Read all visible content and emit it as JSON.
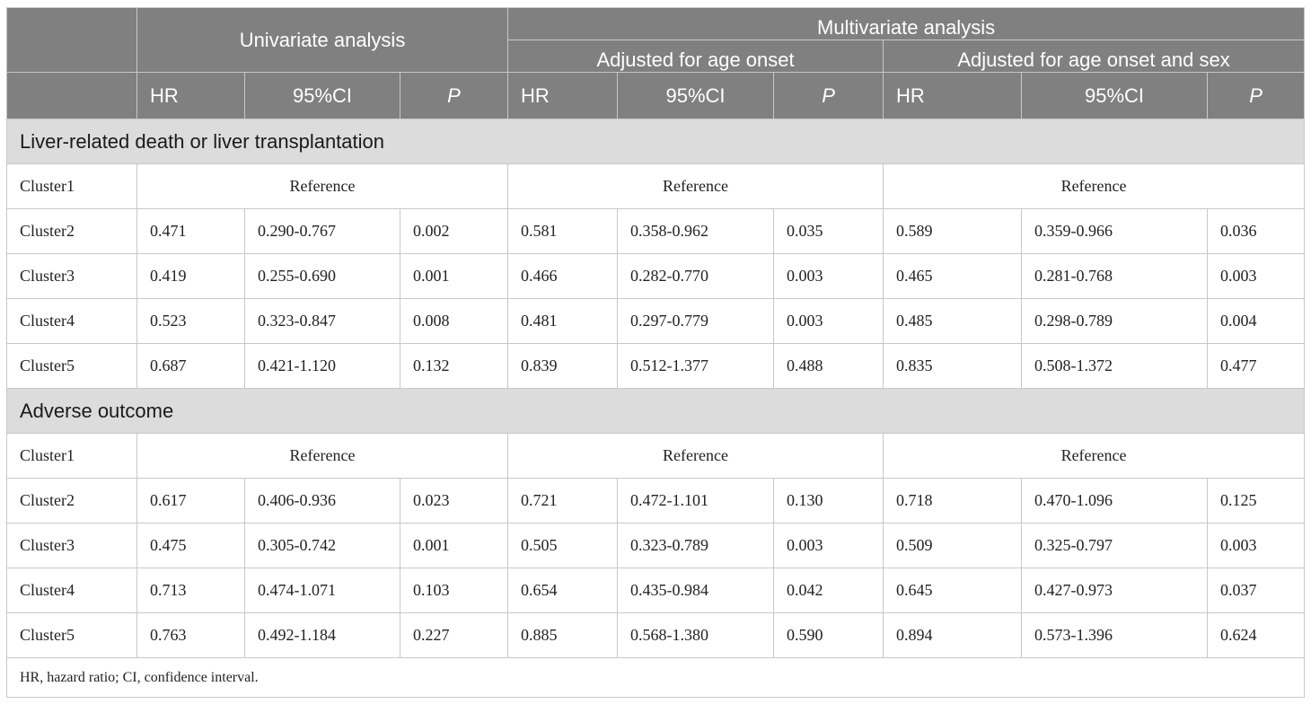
{
  "header": {
    "univariate": "Univariate analysis",
    "multivariate": "Multivariate analysis",
    "adj_age": "Adjusted for age onset",
    "adj_age_sex": "Adjusted for age onset and sex",
    "hr": "HR",
    "ci": "95%CI",
    "p": "P"
  },
  "sections": [
    {
      "title": "Liver-related death or liver transplantation",
      "reference_label": "Reference",
      "rows": [
        {
          "label": "Cluster1",
          "reference": true
        },
        {
          "label": "Cluster2",
          "values": [
            "0.471",
            "0.290-0.767",
            "0.002",
            "0.581",
            "0.358-0.962",
            "0.035",
            "0.589",
            "0.359-0.966",
            "0.036"
          ]
        },
        {
          "label": "Cluster3",
          "values": [
            "0.419",
            "0.255-0.690",
            "0.001",
            "0.466",
            "0.282-0.770",
            "0.003",
            "0.465",
            "0.281-0.768",
            "0.003"
          ]
        },
        {
          "label": "Cluster4",
          "values": [
            "0.523",
            "0.323-0.847",
            "0.008",
            "0.481",
            "0.297-0.779",
            "0.003",
            "0.485",
            "0.298-0.789",
            "0.004"
          ]
        },
        {
          "label": "Cluster5",
          "values": [
            "0.687",
            "0.421-1.120",
            "0.132",
            "0.839",
            "0.512-1.377",
            "0.488",
            "0.835",
            "0.508-1.372",
            "0.477"
          ]
        }
      ]
    },
    {
      "title": "Adverse outcome",
      "reference_label": "Reference",
      "rows": [
        {
          "label": "Cluster1",
          "reference": true
        },
        {
          "label": "Cluster2",
          "values": [
            "0.617",
            "0.406-0.936",
            "0.023",
            "0.721",
            "0.472-1.101",
            "0.130",
            "0.718",
            "0.470-1.096",
            "0.125"
          ]
        },
        {
          "label": "Cluster3",
          "values": [
            "0.475",
            "0.305-0.742",
            "0.001",
            "0.505",
            "0.323-0.789",
            "0.003",
            "0.509",
            "0.325-0.797",
            "0.003"
          ]
        },
        {
          "label": "Cluster4",
          "values": [
            "0.713",
            "0.474-1.071",
            "0.103",
            "0.654",
            "0.435-0.984",
            "0.042",
            "0.645",
            "0.427-0.973",
            "0.037"
          ]
        },
        {
          "label": "Cluster5",
          "values": [
            "0.763",
            "0.492-1.184",
            "0.227",
            "0.885",
            "0.568-1.380",
            "0.590",
            "0.894",
            "0.573-1.396",
            "0.624"
          ]
        }
      ]
    }
  ],
  "footnote": "HR, hazard ratio; CI, confidence interval."
}
